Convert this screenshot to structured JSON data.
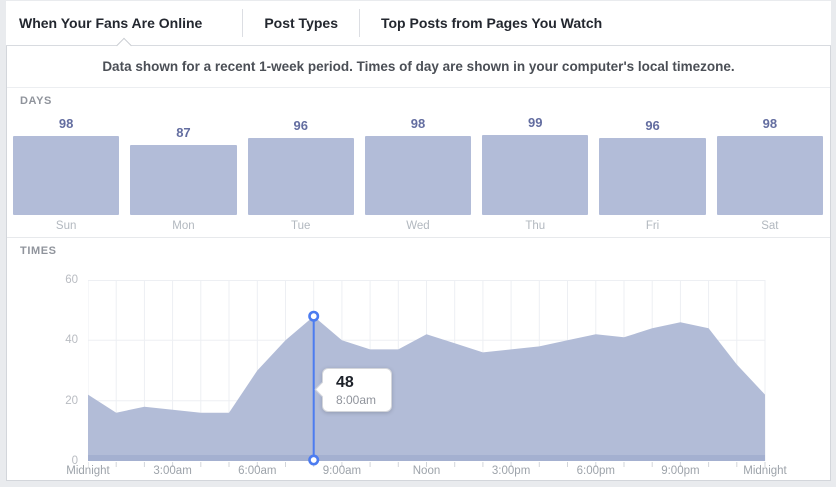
{
  "page": {
    "background": "#e9ebee",
    "panel_background": "#ffffff",
    "panel_border": "#d3d6db"
  },
  "tabs": {
    "items": [
      {
        "label": "When Your Fans Are Online",
        "active": true
      },
      {
        "label": "Post Types",
        "active": false
      },
      {
        "label": "Top Posts from Pages You Watch",
        "active": false
      }
    ]
  },
  "notice": {
    "text": "Data shown for a recent 1-week period. Times of day are shown in your computer's local timezone."
  },
  "chart_data": [
    {
      "type": "bar",
      "section_title": "DAYS",
      "categories": [
        "Sun",
        "Mon",
        "Tue",
        "Wed",
        "Thu",
        "Fri",
        "Sat"
      ],
      "values": [
        98,
        87,
        96,
        98,
        99,
        96,
        98
      ],
      "ylim": [
        0,
        100
      ],
      "bar_color": "#b2bcd8",
      "value_color": "#636da0",
      "label_color": "#b2b8bf",
      "legend": "none",
      "grid": false
    },
    {
      "type": "area",
      "section_title": "TIMES",
      "x_unit": "hour_of_day",
      "x": [
        0,
        1,
        2,
        3,
        4,
        5,
        6,
        7,
        8,
        9,
        10,
        11,
        12,
        13,
        14,
        15,
        16,
        17,
        18,
        19,
        20,
        21,
        22,
        23,
        24
      ],
      "values": [
        22,
        16,
        18,
        17,
        16,
        16,
        30,
        40,
        48,
        40,
        37,
        37,
        42,
        39,
        36,
        37,
        38,
        40,
        42,
        41,
        44,
        46,
        44,
        32,
        22
      ],
      "ylim": [
        0,
        60
      ],
      "y_ticks": [
        0,
        20,
        40,
        60
      ],
      "x_tick_labels": [
        {
          "hour": 0,
          "label": "Midnight"
        },
        {
          "hour": 3,
          "label": "3:00am"
        },
        {
          "hour": 6,
          "label": "6:00am"
        },
        {
          "hour": 9,
          "label": "9:00am"
        },
        {
          "hour": 12,
          "label": "Noon"
        },
        {
          "hour": 15,
          "label": "3:00pm"
        },
        {
          "hour": 18,
          "label": "6:00pm"
        },
        {
          "hour": 21,
          "label": "9:00pm"
        },
        {
          "hour": 24,
          "label": "Midnight"
        }
      ],
      "grid": true,
      "area_color": "#b2bcd7",
      "baseline_color": "#a4b0d0",
      "grid_color": "#edeff3",
      "tick_color": "#d2d5da",
      "highlight": {
        "hour": 8,
        "value": 48,
        "time_label": "8:00am",
        "line_color": "#4c7cf0",
        "marker_fill": "#ffffff"
      }
    }
  ]
}
